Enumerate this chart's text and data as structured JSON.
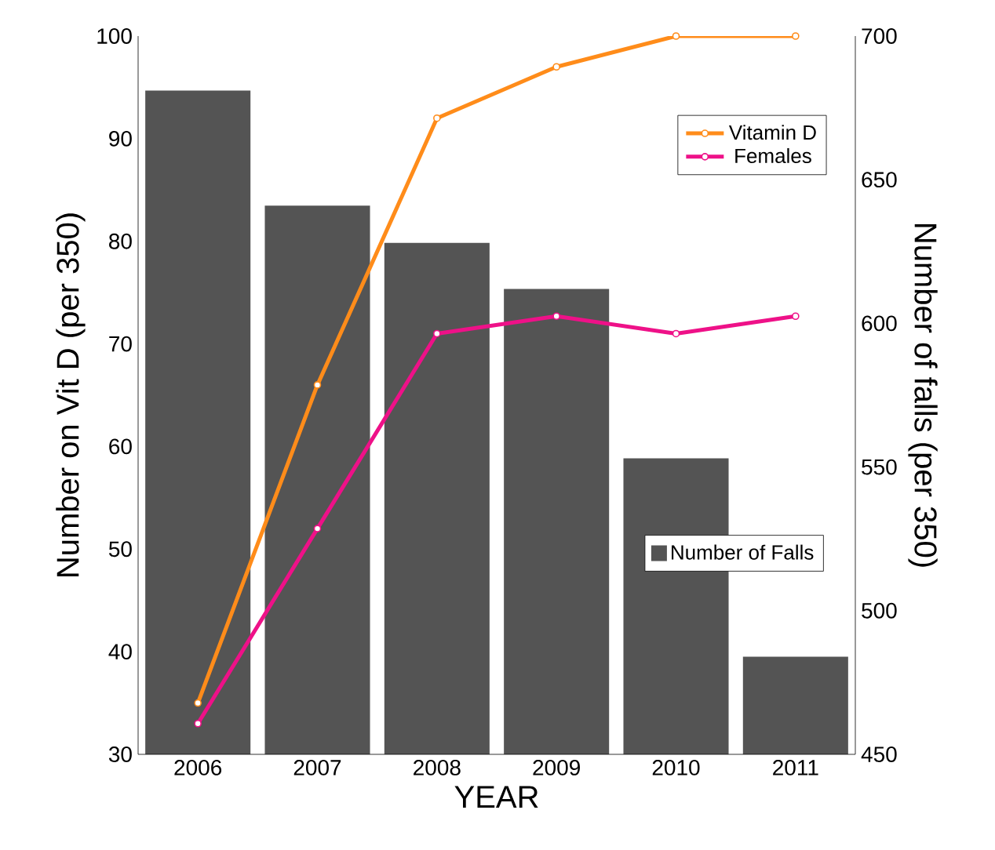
{
  "chart_data": {
    "type": "bar",
    "xlabel": "YEAR",
    "ylabel": "Number on Vit D (per 350)",
    "y2label": "Number of falls (per 350)",
    "categories": [
      "2006",
      "2007",
      "2008",
      "2009",
      "2010",
      "2011"
    ],
    "series": [
      {
        "name": "Number of Falls",
        "axis": "y2",
        "color": "#545454",
        "values": [
          681,
          641,
          628,
          612,
          553,
          484
        ]
      },
      {
        "name": "Vitamin D",
        "type": "line",
        "color": "#ff8c1a",
        "values": [
          35,
          66,
          92,
          97,
          100,
          100
        ]
      },
      {
        "name": "Females",
        "type": "line",
        "color": "#ee1188",
        "values": [
          33,
          52,
          71,
          72.7,
          71,
          72.7
        ]
      }
    ],
    "ylim": [
      30,
      100
    ],
    "yticks": [
      30,
      40,
      50,
      60,
      70,
      80,
      90,
      100
    ],
    "y2lim": [
      450,
      700
    ],
    "y2ticks": [
      450,
      500,
      550,
      600,
      650,
      700
    ],
    "legend": "top right",
    "marker": "circle",
    "line_style": "solid",
    "grid": false
  }
}
